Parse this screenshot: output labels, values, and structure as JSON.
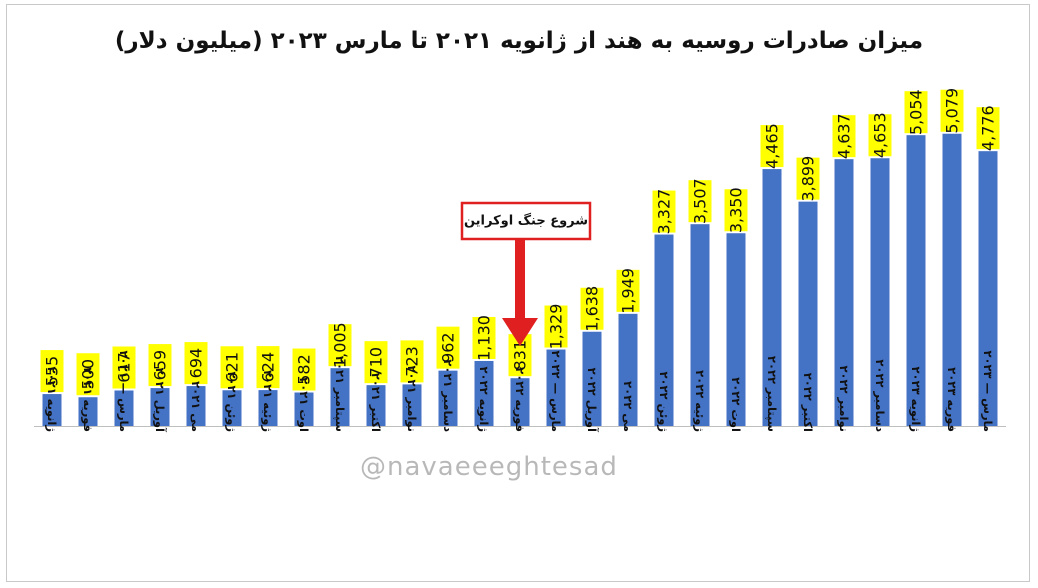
{
  "watermark": {
    "handle": "@navaeeeghtesad"
  },
  "chart_data": {
    "type": "bar",
    "title": "میزان صادرات روسیه به هند از ژانویه ۲۰۲۱ تا مارس ۲۰۲۳ (میلیون دلار)",
    "categories": [
      "ژانویه ۲۰۲۱",
      "فوریه ۲۰۲۱",
      "مارس — ۲۰۲۱",
      "آوریل ۲۰۲۱",
      "می ۲۰۲۱",
      "ژوئن ۲۰۲۱",
      "ژوئیه ۲۰۲۱",
      "اوت ۲۰۲۱",
      "سپتامبر ۲۰۲۱",
      "اکتبر ۲۰۲۱",
      "نوامبر ۲۰۲۱",
      "دسامبر ۲۰۲۱",
      "ژانویه ۲۰۲۲",
      "فوریه ۲۰۲۲",
      "مارس — ۲۰۲۲",
      "آوریل ۲۰۲۲",
      "می ۲۰۲۲",
      "ژوئن ۲۰۲۲",
      "ژوئیه ۲۰۲۲",
      "اوت ۲۰۲۲",
      "سپتامبر ۲۰۲۲",
      "اکتبر ۲۰۲۲",
      "نوامبر ۲۰۲۲",
      "دسامبر ۲۰۲۲",
      "ژانویه ۲۰۲۳",
      "فوریه ۲۰۲۳",
      "مارس — ۲۰۲۳"
    ],
    "values": [
      555,
      500,
      617,
      659,
      694,
      621,
      624,
      582,
      1005,
      710,
      723,
      962,
      1130,
      831,
      1329,
      1638,
      1949,
      3327,
      3507,
      3350,
      4465,
      3899,
      4637,
      4653,
      5054,
      5079,
      4776
    ],
    "value_labels": [
      "555",
      "500",
      "617",
      "659",
      "694",
      "621",
      "624",
      "582",
      "1,005",
      "710",
      "723",
      "962",
      "1,130",
      "831",
      "1,329",
      "1,638",
      "1,949",
      "3,327",
      "3,507",
      "3,350",
      "4,465",
      "3,899",
      "4,637",
      "4,653",
      "5,054",
      "5,079",
      "4,776"
    ],
    "annotation": {
      "text": "شروع جنگ اوکراین",
      "category_index": 13
    },
    "ylim": [
      0,
      5700
    ],
    "grid": false,
    "legend": "none",
    "colors": {
      "bar": "#4472c4",
      "label_bg": "#ffff00",
      "annotation": "#e02020"
    }
  }
}
